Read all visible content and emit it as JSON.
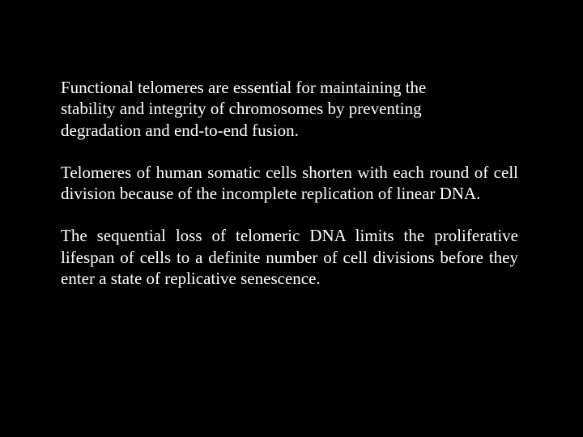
{
  "slide": {
    "background_color": "#000000",
    "text_color": "#ffffff",
    "font_family": "Times New Roman",
    "font_size_pt": 21,
    "paragraphs": [
      {
        "text": "Functional telomeres are essential for maintaining the stability and integrity of chromosomes by preventing degradation and end-to-end fusion.",
        "align": "left"
      },
      {
        "text": "Telomeres of human somatic cells shorten with each round of cell division because of the incomplete replication of linear DNA.",
        "align": "justify"
      },
      {
        "text": "The sequential loss of telomeric DNA limits the proliferative lifespan of cells to a definite number of cell divisions before they enter a state of replicative senescence.",
        "align": "justify"
      }
    ]
  }
}
